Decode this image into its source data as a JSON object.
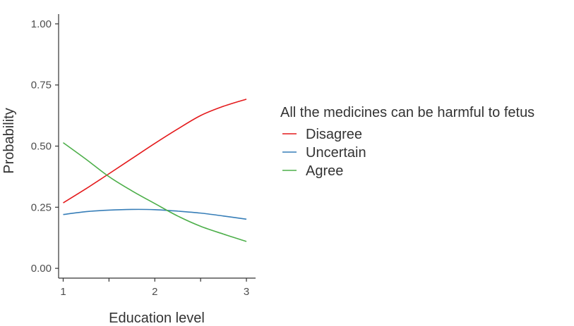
{
  "chart_data": {
    "type": "line",
    "title": "",
    "xlabel": "Education level",
    "ylabel": "Probability",
    "xlim": [
      0.95,
      3.1
    ],
    "ylim": [
      -0.04,
      1.04
    ],
    "x_ticks": [
      1,
      1.5,
      2,
      2.5,
      3
    ],
    "x_tick_labels": [
      "1",
      "",
      "2",
      "",
      "3"
    ],
    "y_ticks": [
      0,
      0.25,
      0.5,
      0.75,
      1
    ],
    "y_tick_labels": [
      "0.00",
      "0.25",
      "0.50",
      "0.75",
      "1.00"
    ],
    "grid": false,
    "legend": {
      "title": "All the medicines can be harmful to fetus",
      "position": "right"
    },
    "x": [
      1,
      1.25,
      1.5,
      1.75,
      2,
      2.25,
      2.5,
      2.75,
      3
    ],
    "series": [
      {
        "name": "Disagree",
        "color": "#e41a1c",
        "values": [
          0.268,
          0.326,
          0.387,
          0.449,
          0.511,
          0.57,
          0.625,
          0.663,
          0.692
        ]
      },
      {
        "name": "Uncertain",
        "color": "#377eb8",
        "values": [
          0.22,
          0.232,
          0.238,
          0.241,
          0.24,
          0.234,
          0.226,
          0.214,
          0.201
        ]
      },
      {
        "name": "Agree",
        "color": "#4daf4a",
        "values": [
          0.514,
          0.446,
          0.375,
          0.317,
          0.265,
          0.214,
          0.172,
          0.14,
          0.11
        ]
      }
    ]
  }
}
